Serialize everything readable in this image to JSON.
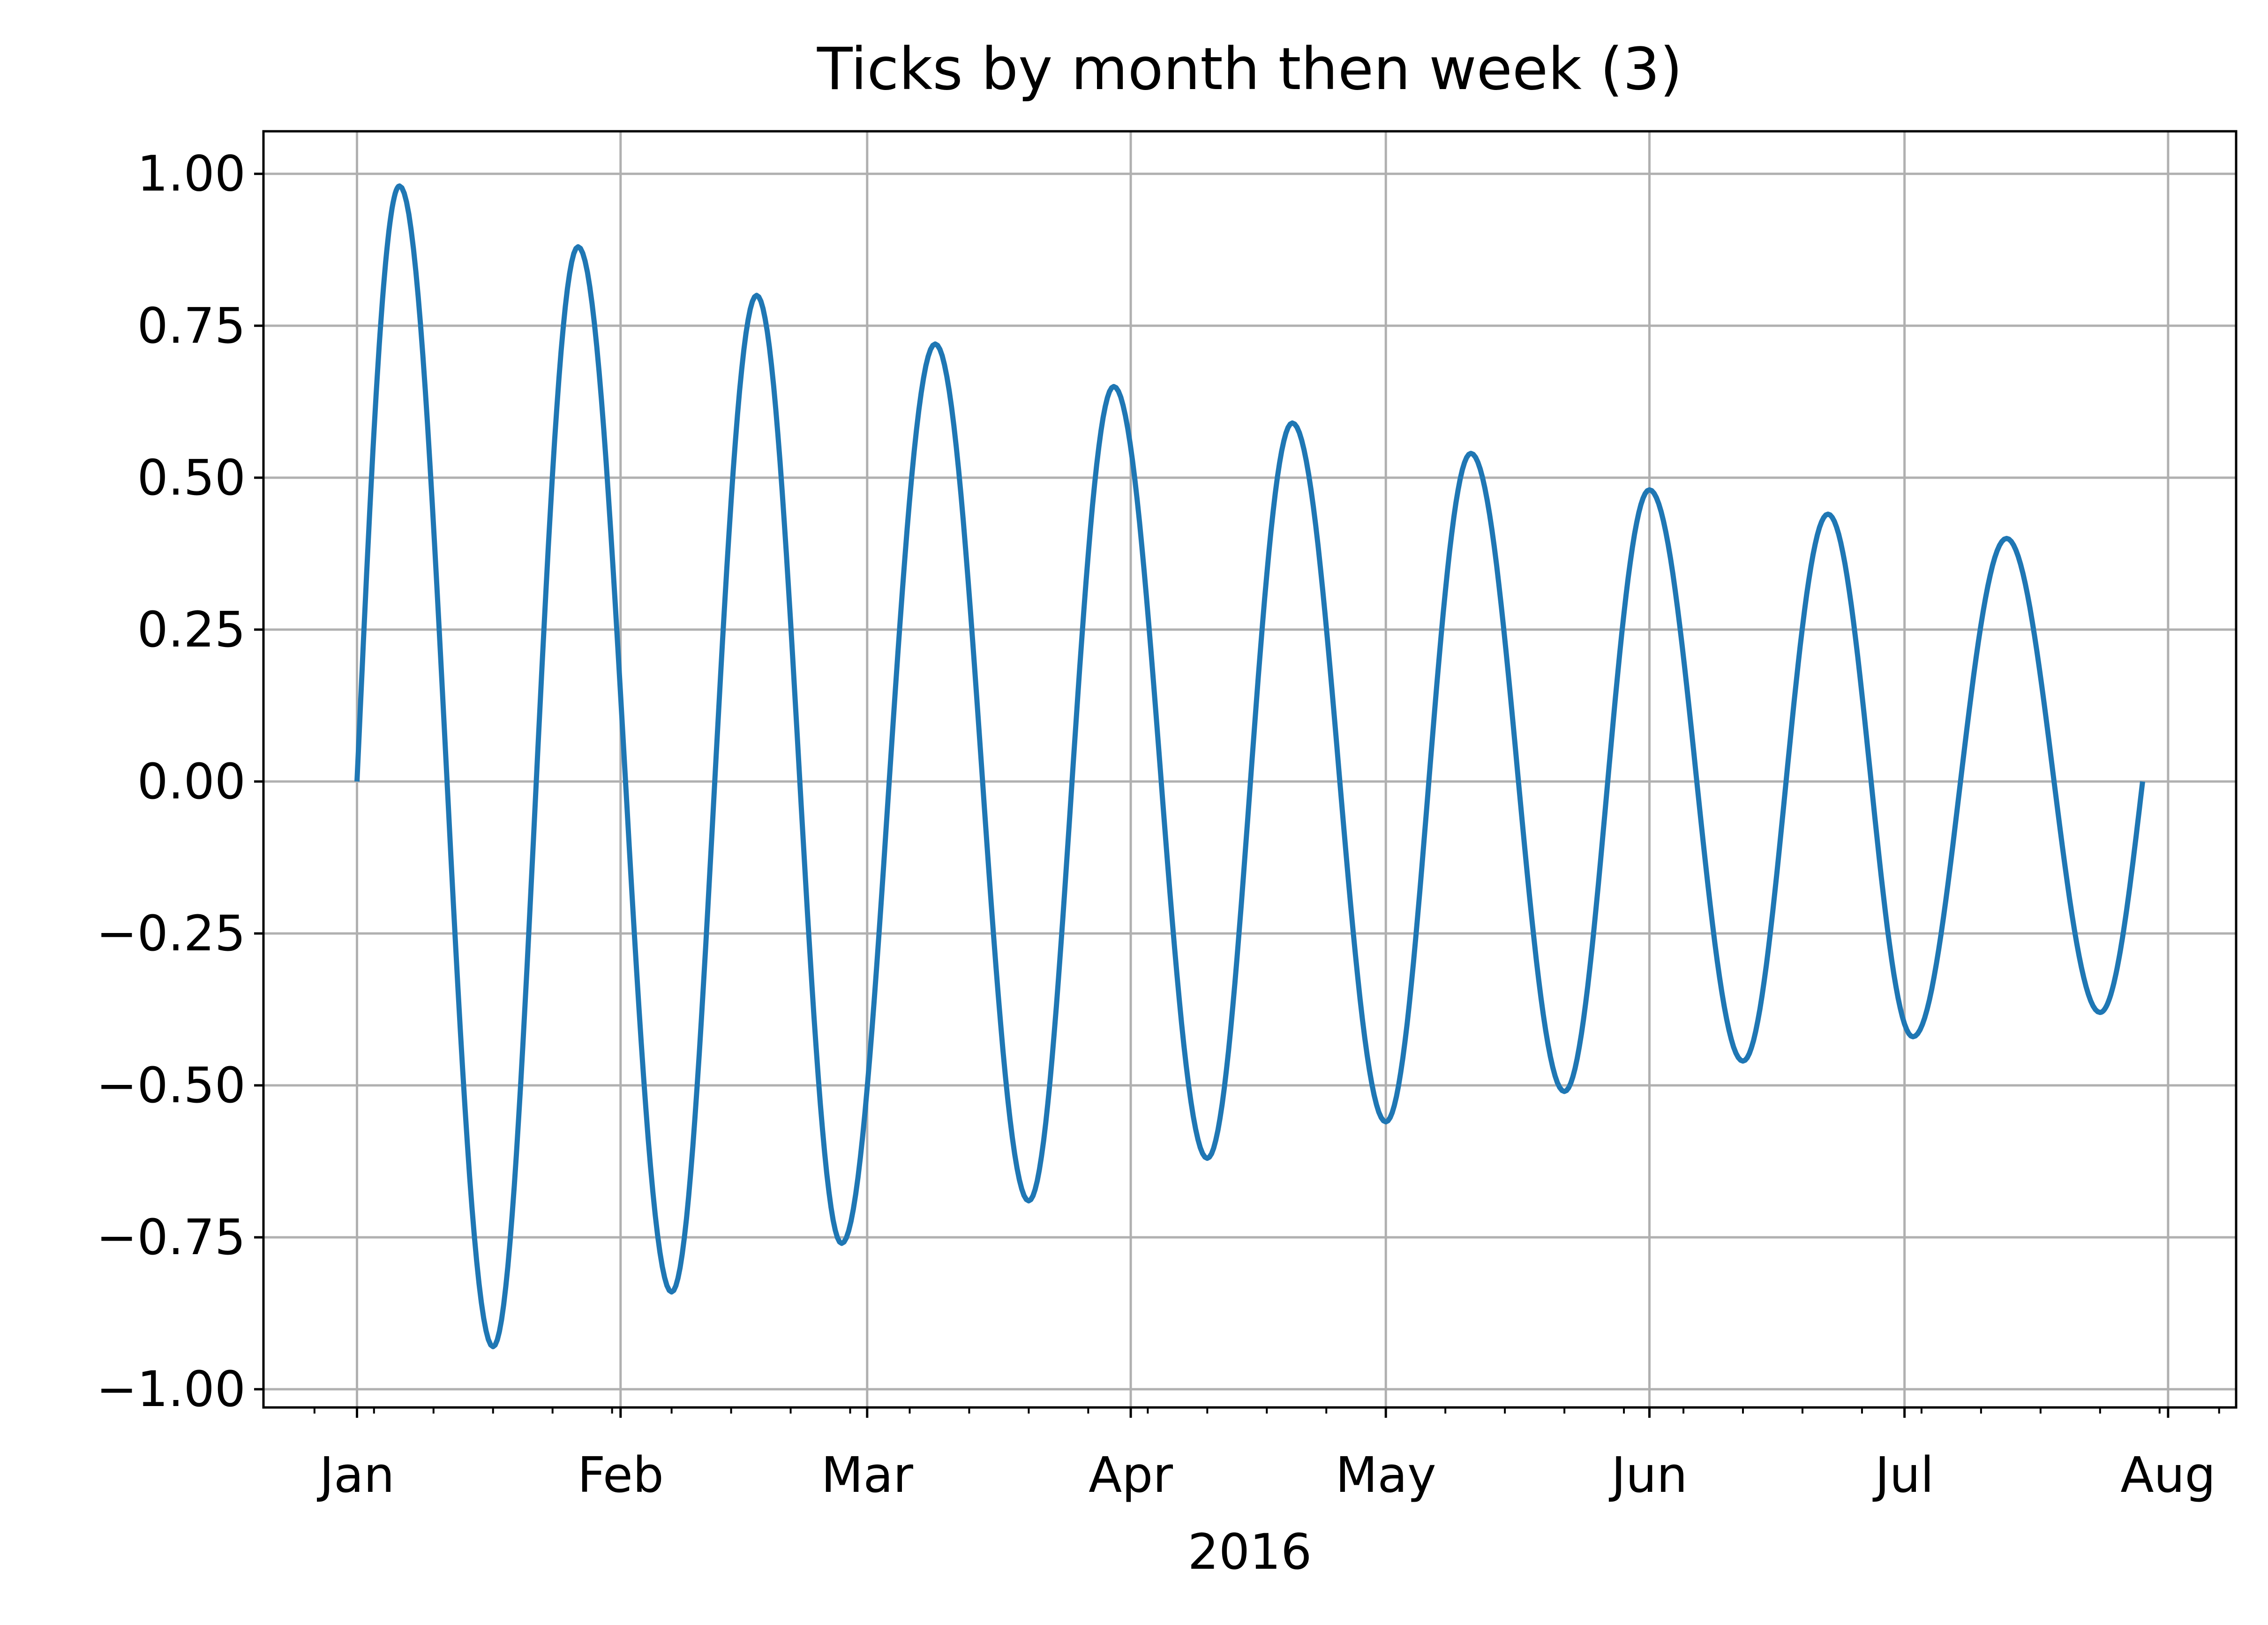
{
  "chart_data": {
    "type": "line",
    "title": "Ticks by month then week (3)",
    "xlabel": "2016",
    "ylabel": "",
    "x_axis": {
      "kind": "date",
      "range": [
        "2015-12-21",
        "2016-08-09"
      ],
      "major_ticks": [
        {
          "date": "2016-01-01",
          "label": "Jan"
        },
        {
          "date": "2016-02-01",
          "label": "Feb"
        },
        {
          "date": "2016-03-01",
          "label": "Mar"
        },
        {
          "date": "2016-04-01",
          "label": "Apr"
        },
        {
          "date": "2016-05-01",
          "label": "May"
        },
        {
          "date": "2016-06-01",
          "label": "Jun"
        },
        {
          "date": "2016-07-01",
          "label": "Jul"
        },
        {
          "date": "2016-08-01",
          "label": "Aug"
        }
      ],
      "minor_ticks": "weekly (Sundays)"
    },
    "y_axis": {
      "range": [
        -1.03,
        1.07
      ],
      "ticks": [
        1.0,
        0.75,
        0.5,
        0.25,
        0.0,
        -0.25,
        -0.5,
        -0.75,
        -1.0
      ],
      "tick_labels": [
        "1.00",
        "0.75",
        "0.50",
        "0.25",
        "0.00",
        "−0.25",
        "−0.50",
        "−0.75",
        "−1.00"
      ]
    },
    "grid": true,
    "legend": "none",
    "series": [
      {
        "color": "#1f77b4",
        "points": [
          {
            "x": "2016-01-01",
            "y": 0.0
          },
          {
            "x": "2016-01-06",
            "y": 0.98
          },
          {
            "x": "2016-01-17",
            "y": -0.93
          },
          {
            "x": "2016-01-27",
            "y": 0.88
          },
          {
            "x": "2016-02-07",
            "y": -0.84
          },
          {
            "x": "2016-02-17",
            "y": 0.8
          },
          {
            "x": "2016-02-27",
            "y": -0.76
          },
          {
            "x": "2016-03-09",
            "y": 0.72
          },
          {
            "x": "2016-03-20",
            "y": -0.69
          },
          {
            "x": "2016-03-30",
            "y": 0.65
          },
          {
            "x": "2016-04-10",
            "y": -0.62
          },
          {
            "x": "2016-04-20",
            "y": 0.59
          },
          {
            "x": "2016-05-01",
            "y": -0.56
          },
          {
            "x": "2016-05-11",
            "y": 0.54
          },
          {
            "x": "2016-05-22",
            "y": -0.51
          },
          {
            "x": "2016-06-01",
            "y": 0.48
          },
          {
            "x": "2016-06-12",
            "y": -0.46
          },
          {
            "x": "2016-06-22",
            "y": 0.44
          },
          {
            "x": "2016-07-02",
            "y": -0.42
          },
          {
            "x": "2016-07-13",
            "y": 0.4
          },
          {
            "x": "2016-07-24",
            "y": -0.38
          },
          {
            "x": "2016-07-29",
            "y": 0.0
          }
        ]
      }
    ]
  }
}
